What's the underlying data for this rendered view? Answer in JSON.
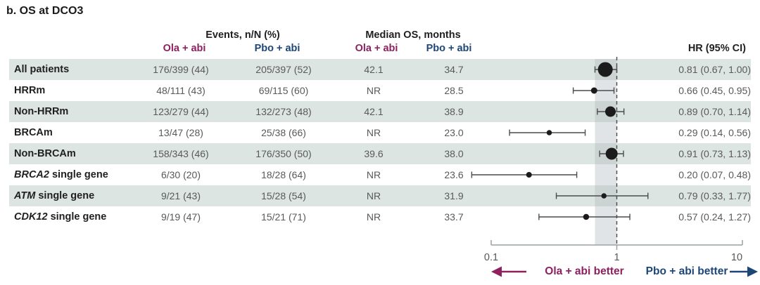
{
  "title": "b. OS at DCO3",
  "header": {
    "events_group": "Events, n/N (%)",
    "median_group": "Median OS, months",
    "arm_ola": "Ola + abi",
    "arm_pbo": "Pbo + abi",
    "hr": "HR (95% CI)"
  },
  "colors": {
    "ola_accent": "#8e2060",
    "pbo_accent": "#1d4678",
    "row_shade": "#dde5e2",
    "band_fill": "#aab2b8",
    "axis": "#9aa0a3",
    "marker": "#1b1b1b",
    "whisker": "#4c4c4c",
    "ref_dash": "#4a4a4a",
    "tick_text": "#55595c"
  },
  "table": {
    "rows": [
      {
        "group_italic": "",
        "group": "All patients",
        "events_ola": "176/399 (44)",
        "events_pbo": "205/397 (52)",
        "median_ola": "42.1",
        "median_pbo": "34.7",
        "hr_ci": "0.81 (0.67, 1.00)"
      },
      {
        "group_italic": "",
        "group": "HRRm",
        "events_ola": "48/111 (43)",
        "events_pbo": "69/115 (60)",
        "median_ola": "NR",
        "median_pbo": "28.5",
        "hr_ci": "0.66 (0.45, 0.95)"
      },
      {
        "group_italic": "",
        "group": "Non-HRRm",
        "events_ola": "123/279 (44)",
        "events_pbo": "132/273 (48)",
        "median_ola": "42.1",
        "median_pbo": "38.9",
        "hr_ci": "0.89 (0.70, 1.14)"
      },
      {
        "group_italic": "",
        "group": "BRCAm",
        "events_ola": "13/47 (28)",
        "events_pbo": "25/38 (66)",
        "median_ola": "NR",
        "median_pbo": "23.0",
        "hr_ci": "0.29 (0.14, 0.56)"
      },
      {
        "group_italic": "",
        "group": "Non-BRCAm",
        "events_ola": "158/343 (46)",
        "events_pbo": "176/350 (50)",
        "median_ola": "39.6",
        "median_pbo": "38.0",
        "hr_ci": "0.91 (0.73, 1.13)"
      },
      {
        "group_italic": "BRCA2",
        "group": " single gene",
        "events_ola": "6/30 (20)",
        "events_pbo": "18/28 (64)",
        "median_ola": "NR",
        "median_pbo": "23.6",
        "hr_ci": "0.20 (0.07, 0.48)"
      },
      {
        "group_italic": "ATM",
        "group": " single gene",
        "events_ola": "9/21 (43)",
        "events_pbo": "15/28 (54)",
        "median_ola": "NR",
        "median_pbo": "31.9",
        "hr_ci": "0.79 (0.33, 1.77)"
      },
      {
        "group_italic": "CDK12",
        "group": " single gene",
        "events_ola": "9/19 (47)",
        "events_pbo": "15/21 (71)",
        "median_ola": "NR",
        "median_pbo": "33.7",
        "hr_ci": "0.57 (0.24, 1.27)"
      }
    ]
  },
  "chart_data": {
    "type": "scatter",
    "subtype": "forest",
    "title": "b. OS at DCO3",
    "categories": [
      "All patients",
      "HRRm",
      "Non-HRRm",
      "BRCAm",
      "Non-BRCAm",
      "BRCA2 single gene",
      "ATM single gene",
      "CDK12 single gene"
    ],
    "series": [
      {
        "name": "HR",
        "values": [
          0.81,
          0.66,
          0.89,
          0.29,
          0.91,
          0.2,
          0.79,
          0.57
        ]
      },
      {
        "name": "CI lower",
        "values": [
          0.67,
          0.45,
          0.7,
          0.14,
          0.73,
          0.07,
          0.33,
          0.24
        ]
      },
      {
        "name": "CI upper",
        "values": [
          1.0,
          0.95,
          1.14,
          0.56,
          1.13,
          0.48,
          1.77,
          1.27
        ]
      }
    ],
    "marker_sizes": [
      21,
      9,
      15,
      7.5,
      17,
      8,
      7.5,
      8.5
    ],
    "xscale": "log",
    "xlim": [
      0.1,
      10
    ],
    "xticks": [
      "0.1",
      "1",
      "10"
    ],
    "ref_line": 1,
    "shaded_band": [
      0.67,
      1.0
    ],
    "grid": false,
    "legend_position": "bottom"
  },
  "legend": {
    "left_label": "Ola + abi better",
    "right_label": "Pbo + abi better"
  }
}
